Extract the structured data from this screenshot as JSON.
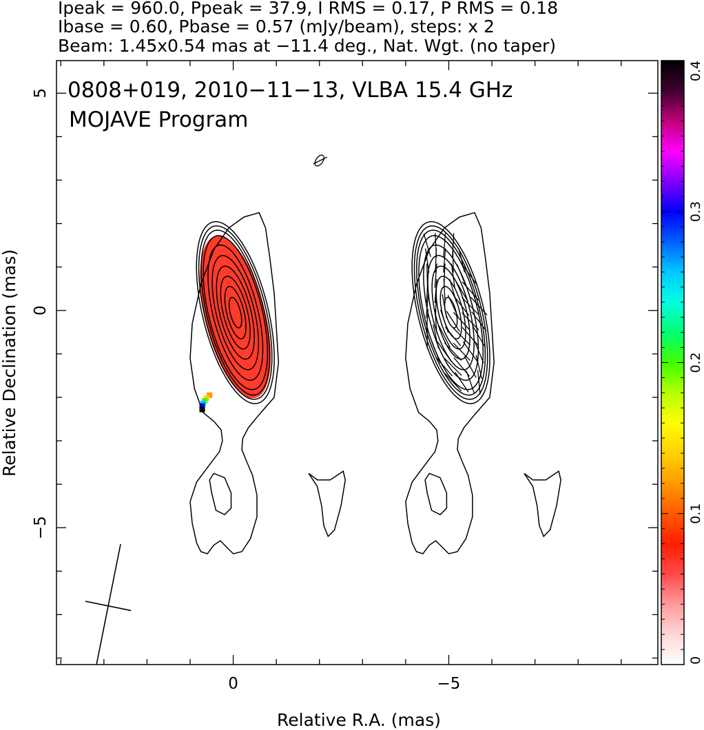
{
  "header": {
    "line1": "Ipeak = 960.0, Ppeak = 37.9, I RMS = 0.17, P RMS = 0.18",
    "line2": "Ibase = 0.60, Pbase = 0.57 (mJy/beam), steps: x 2",
    "line3": "Beam: 1.45x0.54 mas at −11.4 deg., Nat. Wgt. (no taper)"
  },
  "chart_data": {
    "type": "contour",
    "title": "0808+019, 2010−11−13, VLBA 15.4 GHz",
    "subtitle": "MOJAVE Program",
    "xlabel": "Relative R.A. (mas)",
    "ylabel": "Relative Declination (mas)",
    "xlim": [
      4.1,
      -9.85
    ],
    "ylim": [
      -8.15,
      5.75
    ],
    "x_ticks": [
      0,
      -5
    ],
    "y_ticks": [
      5,
      0,
      -5
    ],
    "x_tick_labels": [
      "0",
      "−5"
    ],
    "y_tick_labels": [
      "5",
      "0",
      "−5"
    ],
    "panel_offset": -5.0,
    "beam": {
      "x": 2.9,
      "y": -6.8,
      "major": 1.45,
      "minor": 0.54,
      "pa_deg": -11.4
    },
    "evpa_ref": {
      "x": -2.0,
      "y": 3.45
    },
    "intensity_base_mJy": 0.6,
    "contour_step": "x 2",
    "colorbar": {
      "label_ticks": [
        0,
        0.1,
        0.2,
        0.3,
        0.4
      ],
      "tick_labels": [
        "0",
        "0.1",
        "0.2",
        "0.3",
        "0.4"
      ],
      "range": [
        0,
        0.4
      ]
    },
    "color_scale": [
      "#ffffff",
      "#ffd6d6",
      "#ff9a9a",
      "#ff4a4a",
      "#ff1e00",
      "#ff5a00",
      "#ff9a00",
      "#ffd000",
      "#ffff00",
      "#b4ff00",
      "#40ff00",
      "#00ff70",
      "#00ffe0",
      "#00c8ff",
      "#0060ff",
      "#0000ff",
      "#8000ff",
      "#ff00ff",
      "#c0007a",
      "#400030",
      "#000000"
    ],
    "polarized_patch_color": "#ff3c2c",
    "contour_color": "#000000"
  }
}
